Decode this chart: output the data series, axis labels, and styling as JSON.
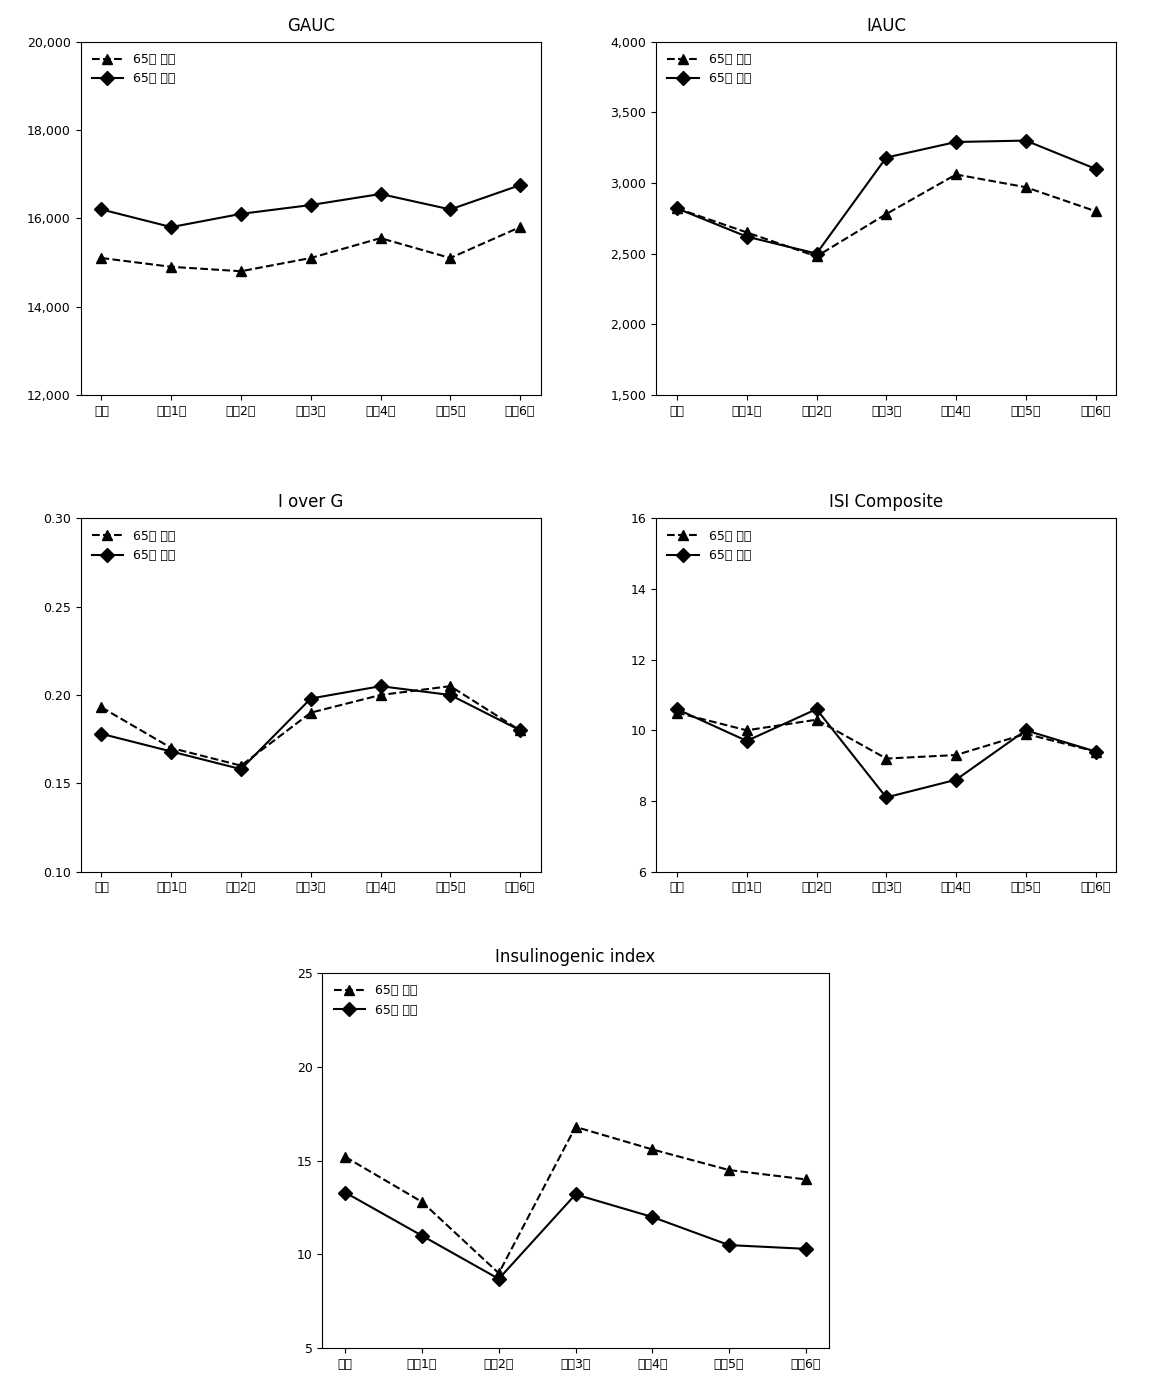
{
  "x_labels": [
    "기초",
    "추적1기",
    "추적2기",
    "추적3기",
    "추적4기",
    "추적5기",
    "추적6기"
  ],
  "legend_under65": "65세 미만",
  "legend_over65": "65세 이상",
  "gauc": {
    "title": "GAUC",
    "ylim": [
      12000,
      20000
    ],
    "yticks": [
      12000,
      14000,
      16000,
      18000,
      20000
    ],
    "under65": [
      15100,
      14900,
      14800,
      15100,
      15550,
      15100,
      15800
    ],
    "over65": [
      16200,
      15800,
      16100,
      16300,
      16550,
      16200,
      16750
    ]
  },
  "iauc": {
    "title": "IAUC",
    "ylim": [
      1500,
      4000
    ],
    "yticks": [
      1500,
      2000,
      2500,
      3000,
      3500,
      4000
    ],
    "under65": [
      2820,
      2650,
      2480,
      2780,
      3060,
      2970,
      2800
    ],
    "over65": [
      2820,
      2620,
      2500,
      3180,
      3290,
      3300,
      3100
    ]
  },
  "iover_g": {
    "title": "I over G",
    "ylim": [
      0.1,
      0.3
    ],
    "yticks": [
      0.1,
      0.15,
      0.2,
      0.25,
      0.3
    ],
    "under65": [
      0.193,
      0.17,
      0.16,
      0.19,
      0.2,
      0.205,
      0.18
    ],
    "over65": [
      0.178,
      0.168,
      0.158,
      0.198,
      0.205,
      0.2,
      0.18
    ]
  },
  "isi": {
    "title": "ISI Composite",
    "ylim": [
      6,
      16
    ],
    "yticks": [
      6,
      8,
      10,
      12,
      14,
      16
    ],
    "under65": [
      10.5,
      10.0,
      10.3,
      9.2,
      9.3,
      9.9,
      9.4
    ],
    "over65": [
      10.6,
      9.7,
      10.6,
      8.1,
      8.6,
      10.0,
      9.4
    ]
  },
  "insulinogenic": {
    "title": "Insulinogenic index",
    "ylim": [
      5,
      25
    ],
    "yticks": [
      5,
      10,
      15,
      20,
      25
    ],
    "under65": [
      15.2,
      12.8,
      9.0,
      16.8,
      15.6,
      14.5,
      14.0
    ],
    "over65": [
      13.3,
      11.0,
      8.7,
      13.2,
      12.0,
      10.5,
      10.3
    ]
  },
  "line_color": "#000000",
  "marker_under65": "^",
  "marker_over65": "D",
  "markersize": 7,
  "linewidth": 1.5,
  "title_fontsize": 12,
  "label_fontsize": 9,
  "tick_fontsize": 9,
  "legend_fontsize": 9
}
